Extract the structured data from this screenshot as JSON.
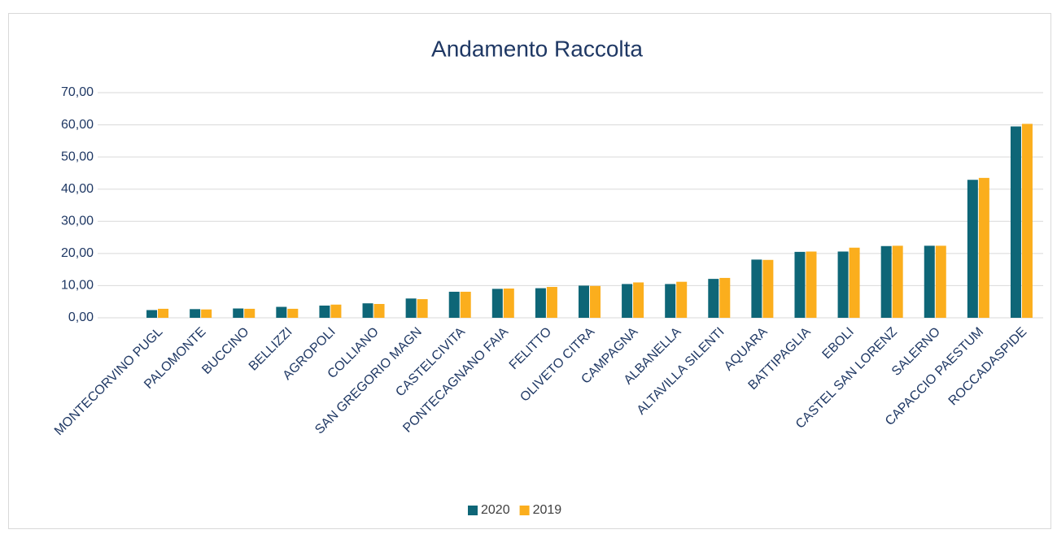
{
  "chart_data": {
    "type": "bar",
    "title": "Andamento Raccolta",
    "categories": [
      "MONTECORVINO PUGL",
      "PALOMONTE",
      "BUCCINO",
      "BELLIZZI",
      "AGROPOLI",
      "COLLIANO",
      "SAN GREGORIO MAGN",
      "CASTELCIVITA",
      "PONTECAGNANO FAIA",
      "FELITTO",
      "OLIVETO CITRA",
      "CAMPAGNA",
      "ALBANELLA",
      "ALTAVILLA SILENTI",
      "AQUARA",
      "BATTIPAGLIA",
      "EBOLI",
      "CASTEL SAN LORENZ",
      "SALERNO",
      "CAPACCIO PAESTUM",
      "ROCCADASPIDE"
    ],
    "series": [
      {
        "name": "2020",
        "color": "#0e6677",
        "values": [
          2.4,
          2.7,
          2.9,
          3.4,
          3.8,
          4.5,
          6.0,
          8.1,
          9.0,
          9.2,
          10.0,
          10.5,
          10.5,
          12.1,
          18.1,
          20.5,
          20.6,
          22.3,
          22.4,
          42.9,
          59.5
        ]
      },
      {
        "name": "2019",
        "color": "#fbae1d",
        "values": [
          2.8,
          2.6,
          2.8,
          2.8,
          4.1,
          4.3,
          5.8,
          8.1,
          9.1,
          9.6,
          9.9,
          11.0,
          11.2,
          12.4,
          18.0,
          20.6,
          21.8,
          22.4,
          22.4,
          43.5,
          60.3
        ]
      }
    ],
    "ylim": [
      0,
      70
    ],
    "yticks": [
      {
        "value": 0,
        "label": "0,00"
      },
      {
        "value": 10,
        "label": "10,00"
      },
      {
        "value": 20,
        "label": "20,00"
      },
      {
        "value": 30,
        "label": "30,00"
      },
      {
        "value": 40,
        "label": "40,00"
      },
      {
        "value": 50,
        "label": "50,00"
      },
      {
        "value": 60,
        "label": "60,00"
      },
      {
        "value": 70,
        "label": "70,00"
      }
    ],
    "grid": true,
    "legend": "bottom"
  }
}
